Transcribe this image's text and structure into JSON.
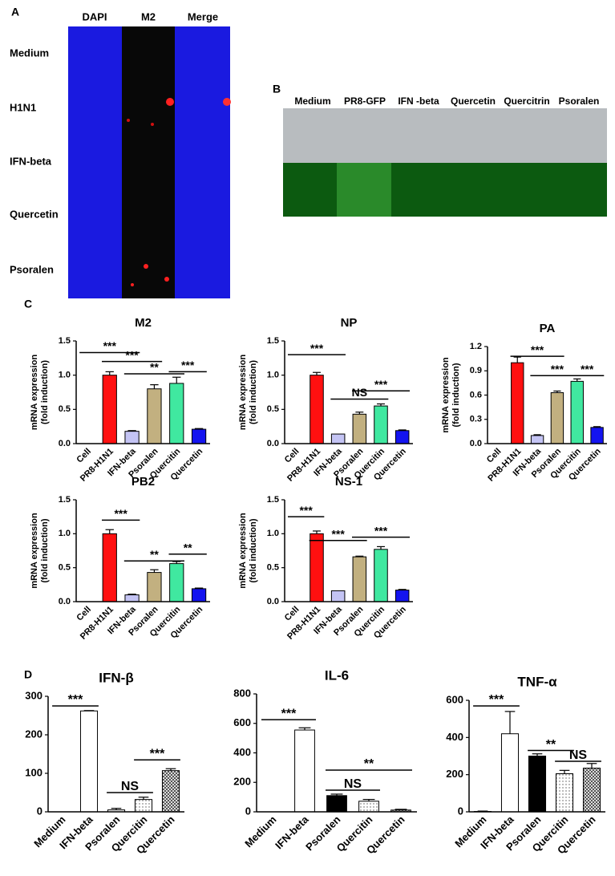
{
  "panel_labels": [
    "A",
    "B",
    "C",
    "D"
  ],
  "panel_a": {
    "columns": [
      "DAPI",
      "M2",
      "Merge"
    ],
    "rows": [
      "Medium",
      "H1N1",
      "IFN-beta",
      "Quercetin",
      "Psoralen"
    ]
  },
  "panel_b": {
    "columns": [
      "Medium",
      "PR8-GFP",
      "IFN -beta",
      "Quercetin",
      "Quercitrin",
      "Psoralen"
    ]
  },
  "chart_data": [
    {
      "type": "bar",
      "title": "M2",
      "ylabel": [
        "mRNA expression",
        "(fold induction)"
      ],
      "categories": [
        "Cell",
        "PR8-H1N1",
        "IFN-beta",
        "Psoralen",
        "Quercitin",
        "Quercetin"
      ],
      "values": [
        0,
        1.0,
        0.18,
        0.8,
        0.88,
        0.21
      ],
      "errors": [
        0,
        0.05,
        0.01,
        0.06,
        0.09,
        0.01
      ],
      "colors": [
        "#ffffff",
        "#ff1010",
        "#c4c4f4",
        "#c2b080",
        "#40e8a0",
        "#1414f0"
      ],
      "ylim": [
        0,
        1.5
      ],
      "yticks": [
        {
          "value": 0,
          "label": "0.0"
        },
        0.5,
        {
          "value": 1,
          "label": "1.0"
        },
        1.5
      ],
      "annotations": [
        {
          "text": "***",
          "from": 0,
          "to": 2,
          "y": 1.33
        },
        {
          "text": "***",
          "from": 1,
          "to": 3,
          "y": 1.2
        },
        {
          "text": "**",
          "from": 2,
          "to": 4,
          "y": 1.02
        },
        {
          "text": "***",
          "from": 4,
          "to": 5,
          "y": 1.05
        }
      ]
    },
    {
      "type": "bar",
      "title": "NP",
      "ylabel": [
        "mRNA expression",
        "(fold induction)"
      ],
      "categories": [
        "Cell",
        "PR8-H1N1",
        "IFN-beta",
        "Psoralen",
        "Quercitin",
        "Quercetin"
      ],
      "values": [
        0,
        1.0,
        0.14,
        0.43,
        0.55,
        0.19
      ],
      "errors": [
        0,
        0.04,
        0,
        0.03,
        0.03,
        0.01
      ],
      "colors": [
        "#ffffff",
        "#ff1010",
        "#c4c4f4",
        "#c2b080",
        "#40e8a0",
        "#1414f0"
      ],
      "ylim": [
        0,
        1.5
      ],
      "yticks": [
        {
          "value": 0,
          "label": "0.0"
        },
        0.5,
        {
          "value": 1,
          "label": "1.0"
        },
        1.5
      ],
      "annotations": [
        {
          "text": "***",
          "from": 0,
          "to": 2,
          "y": 1.3
        },
        {
          "text": "NS",
          "from": 2,
          "to": 4,
          "y": 0.65
        },
        {
          "text": "***",
          "from": 3,
          "to": 5,
          "y": 0.77
        }
      ]
    },
    {
      "type": "bar",
      "title": "PA",
      "ylabel": [
        "mRNA expression",
        "(fold induction)"
      ],
      "categories": [
        "Cell",
        "PR8-H1N1",
        "IFN-beta",
        "Psoralen",
        "Quercitin",
        "Quercetin"
      ],
      "values": [
        0,
        1.0,
        0.1,
        0.63,
        0.77,
        0.2
      ],
      "errors": [
        0,
        0.07,
        0.01,
        0.02,
        0.03,
        0.01
      ],
      "colors": [
        "#ffffff",
        "#ff1010",
        "#c4c4f4",
        "#c2b080",
        "#40e8a0",
        "#1414f0"
      ],
      "ylim": [
        0,
        1.2
      ],
      "yticks": [
        {
          "value": 0,
          "label": "0.0"
        },
        0.3,
        0.6,
        0.9,
        1.2
      ],
      "annotations": [
        {
          "text": "***",
          "from": 1,
          "to": 3,
          "y": 1.08
        },
        {
          "text": "***",
          "from": 2,
          "to": 4,
          "y": 0.84
        },
        {
          "text": "***",
          "from": 4,
          "to": 5,
          "y": 0.84
        }
      ]
    },
    {
      "type": "bar",
      "title": "PB2",
      "ylabel": [
        "mRNA expression",
        "(fold induction)"
      ],
      "categories": [
        "Cell",
        "PR8-H1N1",
        "IFN-beta",
        "Psoralen",
        "Quercitin",
        "Quercetin"
      ],
      "values": [
        0,
        1.0,
        0.1,
        0.43,
        0.56,
        0.19
      ],
      "errors": [
        0,
        0.06,
        0.01,
        0.04,
        0.03,
        0.01
      ],
      "colors": [
        "#ffffff",
        "#ff1010",
        "#c4c4f4",
        "#c2b080",
        "#40e8a0",
        "#1414f0"
      ],
      "ylim": [
        0,
        1.5
      ],
      "yticks": [
        {
          "value": 0,
          "label": "0.0"
        },
        0.5,
        {
          "value": 1,
          "label": "1.0"
        },
        1.5
      ],
      "annotations": [
        {
          "text": "***",
          "from": 1,
          "to": 2,
          "y": 1.2
        },
        {
          "text": "**",
          "from": 2,
          "to": 4,
          "y": 0.6
        },
        {
          "text": "**",
          "from": 4,
          "to": 5,
          "y": 0.7
        }
      ]
    },
    {
      "type": "bar",
      "title": "NS-1",
      "ylabel": [
        "mRNA expression",
        "(fold induction)"
      ],
      "categories": [
        "Cell",
        "PR8-H1N1",
        "IFN-beta",
        "Psoralen",
        "Quercitin",
        "Quercetin"
      ],
      "values": [
        0,
        1.0,
        0.16,
        0.66,
        0.77,
        0.17
      ],
      "errors": [
        0,
        0.04,
        0,
        0.01,
        0.04,
        0.01
      ],
      "colors": [
        "#ffffff",
        "#ff1010",
        "#c4c4f4",
        "#c2b080",
        "#40e8a0",
        "#1414f0"
      ],
      "ylim": [
        0,
        1.5
      ],
      "yticks": [
        {
          "value": 0,
          "label": "0.0"
        },
        0.5,
        {
          "value": 1,
          "label": "1.0"
        },
        1.5
      ],
      "annotations": [
        {
          "text": "***",
          "from": 0,
          "to": 1,
          "y": 1.25
        },
        {
          "text": "***",
          "from": 1,
          "to": 3,
          "y": 0.9
        },
        {
          "text": "***",
          "from": 3,
          "to": 5,
          "y": 0.95
        }
      ]
    },
    {
      "type": "bar",
      "title": "IFN-β",
      "categories": [
        "Medium",
        "IFN-beta",
        "Psoralen",
        "Quercitin",
        "Quercetin"
      ],
      "values": [
        0,
        262,
        5,
        32,
        107
      ],
      "errors": [
        0,
        1,
        4,
        6,
        5
      ],
      "colors": [
        "#ffffff",
        "#ffffff",
        "#ffffff",
        "url(#dots)",
        "url(#hatch)"
      ],
      "ylim": [
        0,
        300
      ],
      "yticks": [
        0,
        100,
        200,
        300
      ],
      "annotations": [
        {
          "text": "***",
          "from": 0,
          "to": 1,
          "y": 275
        },
        {
          "text": "NS",
          "from": 2,
          "to": 3,
          "y": 50
        },
        {
          "text": "***",
          "from": 3,
          "to": 4,
          "y": 135
        }
      ]
    },
    {
      "type": "bar",
      "title": "IL-6",
      "categories": [
        "Medium",
        "IFN-beta",
        "Psoralen",
        "Quercitin",
        "Quercetin"
      ],
      "values": [
        0,
        555,
        110,
        72,
        12
      ],
      "errors": [
        0,
        15,
        10,
        12,
        5
      ],
      "colors": [
        "#ffffff",
        "#ffffff",
        "#000000",
        "url(#dots)",
        "url(#hatch)"
      ],
      "ylim": [
        0,
        800
      ],
      "yticks": [
        0,
        200,
        400,
        600,
        800
      ],
      "annotations": [
        {
          "text": "***",
          "from": 0,
          "to": 1,
          "y": 625
        },
        {
          "text": "NS",
          "from": 2,
          "to": 3,
          "y": 147
        },
        {
          "text": "**",
          "from": 2,
          "to": 4,
          "y": 283
        }
      ]
    },
    {
      "type": "bar",
      "title": "TNF-α",
      "categories": [
        "Medium",
        "IFN-beta",
        "Psoralen",
        "Quercitin",
        "Quercetin"
      ],
      "values": [
        2,
        420,
        300,
        205,
        235
      ],
      "errors": [
        2,
        120,
        12,
        18,
        25
      ],
      "colors": [
        "#ffffff",
        "#ffffff",
        "#000000",
        "url(#dots)",
        "url(#hatch)"
      ],
      "ylim": [
        0,
        600
      ],
      "yticks": [
        0,
        200,
        400,
        600
      ],
      "annotations": [
        {
          "text": "***",
          "from": 0,
          "to": 1,
          "y": 570
        },
        {
          "text": "**",
          "from": 2,
          "to": 3,
          "y": 330
        },
        {
          "text": "NS",
          "from": 3,
          "to": 4,
          "y": 272
        }
      ]
    }
  ]
}
